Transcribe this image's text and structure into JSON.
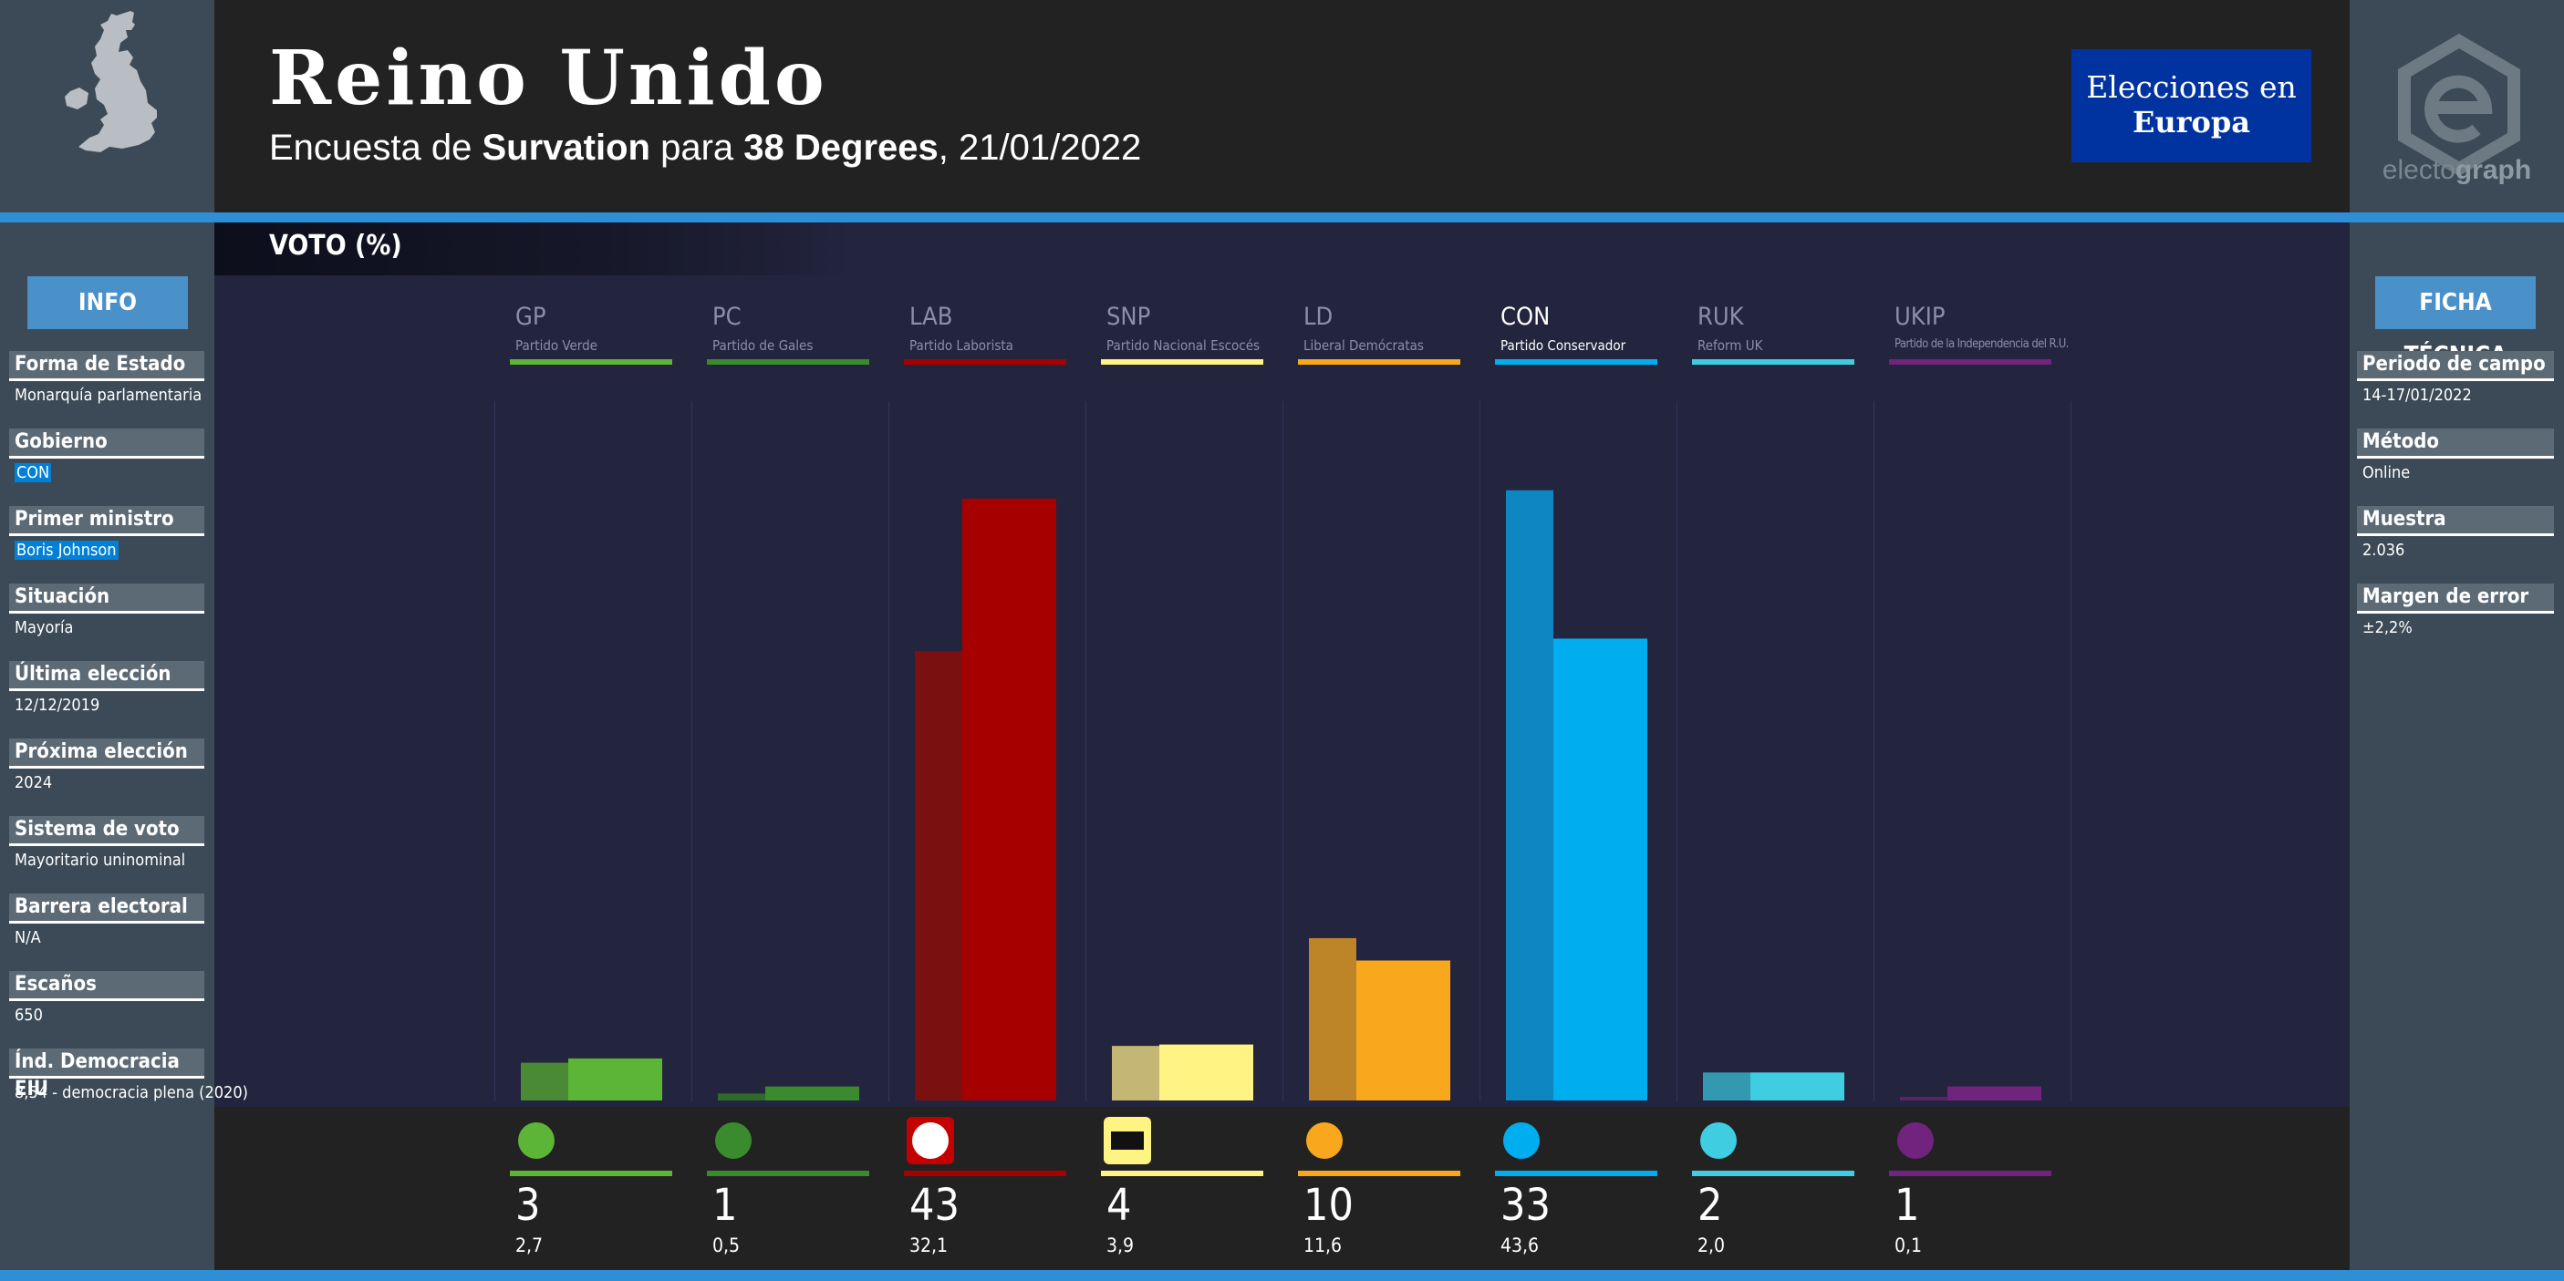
{
  "header": {
    "title": "Reino Unido",
    "subtitle_prefix": "Encuesta de ",
    "pollster": "Survation",
    "subtitle_mid": " para ",
    "client": "38 Degrees",
    "date": ", 21/01/2022"
  },
  "logos": {
    "ee_line1": "Elecciones en",
    "ee_line2": "Europa",
    "eg_prefix": "electo",
    "eg_suffix": "graph"
  },
  "chart_section_label": "VOTO (%)",
  "info": {
    "button": "INFO",
    "items": [
      {
        "label": "Forma de Estado",
        "value": "Monarquía parlamentaria",
        "highlight": false
      },
      {
        "label": "Gobierno",
        "value": "CON",
        "highlight": true
      },
      {
        "label": "Primer ministro",
        "value": "Boris Johnson",
        "highlight": true
      },
      {
        "label": "Situación",
        "value": "Mayoría",
        "highlight": false
      },
      {
        "label": "Última elección",
        "value": "12/12/2019",
        "highlight": false
      },
      {
        "label": "Próxima elección",
        "value": "2024",
        "highlight": false
      },
      {
        "label": "Sistema de voto",
        "value": "Mayoritario uninominal",
        "highlight": false
      },
      {
        "label": "Barrera electoral",
        "value": "N/A",
        "highlight": false
      },
      {
        "label": "Escaños",
        "value": "650",
        "highlight": false
      },
      {
        "label": "Índ. Democracia EIU",
        "value": "8,54 - democracia plena (2020)",
        "highlight": false
      }
    ]
  },
  "ficha": {
    "button": "FICHA TÉCNICA",
    "items": [
      {
        "label": "Periodo de campo",
        "value": "14-17/01/2022"
      },
      {
        "label": "Método",
        "value": "Online"
      },
      {
        "label": "Muestra",
        "value": "2.036"
      },
      {
        "label": "Margen de error",
        "value": "±2,2%"
      }
    ]
  },
  "chart_data": {
    "type": "bar",
    "categories": [
      "GP",
      "PC",
      "LAB",
      "SNP",
      "LD",
      "CON",
      "RUK",
      "UKIP"
    ],
    "party_names": [
      "Partido Verde",
      "Partido de Gales",
      "Partido Laborista",
      "Partido Nacional Escocés",
      "Liberal Demócratas",
      "Partido Conservador",
      "Reform UK",
      "Partido de la Independencia del R.U."
    ],
    "series": [
      {
        "values": [
          2.7,
          0.5,
          32.1,
          3.9,
          11.6,
          43.6,
          2.0,
          0.1
        ]
      },
      {
        "values": [
          3,
          1,
          43,
          4,
          10,
          33,
          2,
          1
        ]
      }
    ],
    "display_values": [
      "3",
      "1",
      "43",
      "4",
      "10",
      "33",
      "2",
      "1"
    ],
    "display_prev": [
      "2,7",
      "0,5",
      "32,1",
      "3,9",
      "11,6",
      "43,6",
      "2,0",
      "0,1"
    ],
    "colors": [
      "#5cb536",
      "#3a8a2e",
      "#a70000",
      "#fff384",
      "#f9a71d",
      "#00aeef",
      "#3ecde1",
      "#70247e"
    ],
    "prev_colors": [
      "#4a8a35",
      "#2f6a28",
      "#7a1010",
      "#c4b674",
      "#be8428",
      "#0d86c1",
      "#3399b0",
      "#5a2466"
    ],
    "icons": [
      "green-party-logo-icon",
      "daffodil-logo-icon",
      "rose-logo-icon",
      "snp-logo-icon",
      "bird-logo-icon",
      "tree-logo-icon",
      "reform-logo-icon",
      "pound-logo-icon"
    ],
    "highlighted": "CON",
    "ylim": [
      0,
      50
    ],
    "xlabel": "",
    "ylabel": ""
  }
}
